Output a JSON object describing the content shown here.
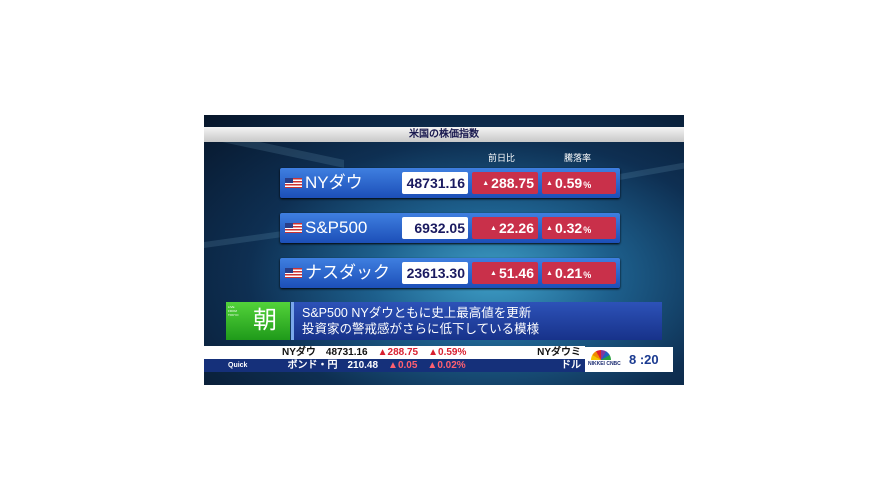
{
  "title": "米国の株価指数",
  "headers": {
    "change": "前日比",
    "rate": "騰落率"
  },
  "indices": [
    {
      "name": "NYダウ",
      "value": "48731.16",
      "change": "288.75",
      "rate": "0.59",
      "direction": "up"
    },
    {
      "name": "S&P500",
      "value": "6932.05",
      "change": "22.26",
      "rate": "0.32",
      "direction": "up"
    },
    {
      "name": "ナスダック",
      "value": "23613.30",
      "change": "51.46",
      "rate": "0.21",
      "direction": "up"
    }
  ],
  "up_symbol": "▲",
  "percent": "%",
  "program": {
    "badge": "朝",
    "badge_small": "LIVE FROM TOKYO"
  },
  "headline": {
    "line1": "S&P500 NYダウともに史上最高値を更新",
    "line2": "投資家の警戒感がさらに低下している模様"
  },
  "ticker": {
    "row1": {
      "label": "NYダウ",
      "value": "48731.16",
      "change": "▲288.75",
      "rate": "▲0.59%",
      "next": "NYダウミ"
    },
    "row2": {
      "source": "Quick",
      "label": "ボンド・円",
      "value": "210.48",
      "change": "▲0.05",
      "rate": "▲0.02%",
      "next": "ドル"
    }
  },
  "logo": {
    "text": "NIKKEI CNBC"
  },
  "clock": "8 :20",
  "colors": {
    "up": "#c9304a",
    "row": "#2a5fcc",
    "badge": "#3cbf2c"
  }
}
